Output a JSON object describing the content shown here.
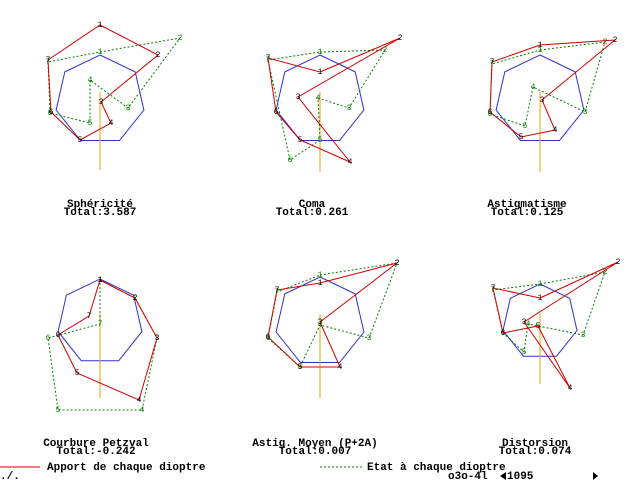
{
  "panels": [
    {
      "title": "Sphéricité",
      "total": "Total:3.587"
    },
    {
      "title": "Coma",
      "total": "Total:0.261"
    },
    {
      "title": "Astigmatisme",
      "total": "Total:0.125"
    },
    {
      "title": "Courbure Petzval",
      "total": "Total:-0.242"
    },
    {
      "title": "Astig. Moyen (P+2A)",
      "total": "Total:0.007"
    },
    {
      "title": "Distorsion",
      "total": "Total:0.074"
    }
  ],
  "surface_labels": [
    "1",
    "2",
    "3",
    "4",
    "5",
    "6",
    "7"
  ],
  "legend": {
    "red": "Apport de chaque dioptre",
    "green": "Etat à chaque dioptre"
  },
  "footer": {
    "left": "./.",
    "file": "o3o-4l",
    "count": "1095"
  }
}
